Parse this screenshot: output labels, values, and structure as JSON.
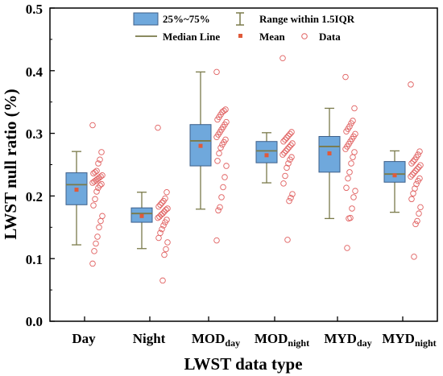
{
  "chart_data": {
    "type": "box",
    "xlabel": "LWST data type",
    "ylabel": "LWST null ratio (%)",
    "ylim": [
      0.0,
      0.5
    ],
    "yticks": [
      "0.0",
      "0.1",
      "0.2",
      "0.3",
      "0.4",
      "0.5"
    ],
    "ytick_values": [
      0.0,
      0.1,
      0.2,
      0.3,
      0.4,
      0.5
    ],
    "categories": [
      {
        "main": "Day",
        "sub": ""
      },
      {
        "main": "Night",
        "sub": ""
      },
      {
        "main": "MOD",
        "sub": "day"
      },
      {
        "main": "MOD",
        "sub": "night"
      },
      {
        "main": "MYD",
        "sub": "day"
      },
      {
        "main": "MYD",
        "sub": "night"
      }
    ],
    "legend": {
      "position": "top-center",
      "box": "25%~75%",
      "range": "Range within 1.5IQR",
      "median": "Median Line",
      "mean": "Mean",
      "data": "Data"
    },
    "colors": {
      "box_fill": "#6fa8dc",
      "box_edge": "#3d5f8a",
      "median": "#7a7a4a",
      "whisker": "#7a7a4a",
      "mean": "#e05a3a",
      "data_point": "#e06060"
    },
    "series": [
      {
        "q1": 0.186,
        "median": 0.218,
        "q3": 0.237,
        "mean": 0.21,
        "min": 0.122,
        "max": 0.271,
        "points": [
          0.313,
          0.27,
          0.258,
          0.252,
          0.24,
          0.238,
          0.236,
          0.233,
          0.231,
          0.229,
          0.227,
          0.225,
          0.223,
          0.221,
          0.219,
          0.217,
          0.213,
          0.207,
          0.195,
          0.185,
          0.168,
          0.16,
          0.15,
          0.135,
          0.124,
          0.112,
          0.092
        ]
      },
      {
        "q1": 0.158,
        "median": 0.172,
        "q3": 0.181,
        "mean": 0.168,
        "min": 0.116,
        "max": 0.206,
        "points": [
          0.309,
          0.206,
          0.196,
          0.192,
          0.189,
          0.186,
          0.183,
          0.18,
          0.178,
          0.175,
          0.172,
          0.17,
          0.167,
          0.165,
          0.162,
          0.158,
          0.153,
          0.147,
          0.141,
          0.133,
          0.126,
          0.115,
          0.106,
          0.065
        ]
      },
      {
        "q1": 0.248,
        "median": 0.288,
        "q3": 0.314,
        "mean": 0.28,
        "min": 0.179,
        "max": 0.398,
        "points": [
          0.398,
          0.338,
          0.336,
          0.334,
          0.33,
          0.326,
          0.322,
          0.318,
          0.314,
          0.31,
          0.306,
          0.302,
          0.298,
          0.294,
          0.29,
          0.286,
          0.282,
          0.277,
          0.268,
          0.256,
          0.248,
          0.23,
          0.214,
          0.198,
          0.182,
          0.177,
          0.129
        ]
      },
      {
        "q1": 0.253,
        "median": 0.272,
        "q3": 0.287,
        "mean": 0.265,
        "min": 0.221,
        "max": 0.301,
        "points": [
          0.42,
          0.302,
          0.299,
          0.296,
          0.293,
          0.29,
          0.287,
          0.284,
          0.281,
          0.278,
          0.275,
          0.272,
          0.269,
          0.266,
          0.262,
          0.258,
          0.252,
          0.245,
          0.232,
          0.22,
          0.203,
          0.197,
          0.192,
          0.13
        ]
      },
      {
        "q1": 0.238,
        "median": 0.279,
        "q3": 0.295,
        "mean": 0.268,
        "min": 0.164,
        "max": 0.34,
        "points": [
          0.39,
          0.34,
          0.32,
          0.316,
          0.311,
          0.307,
          0.303,
          0.299,
          0.295,
          0.291,
          0.287,
          0.283,
          0.279,
          0.275,
          0.27,
          0.262,
          0.252,
          0.238,
          0.228,
          0.213,
          0.208,
          0.198,
          0.18,
          0.165,
          0.164,
          0.117
        ]
      },
      {
        "q1": 0.222,
        "median": 0.235,
        "q3": 0.255,
        "mean": 0.233,
        "min": 0.174,
        "max": 0.272,
        "points": [
          0.378,
          0.271,
          0.266,
          0.262,
          0.258,
          0.255,
          0.252,
          0.249,
          0.246,
          0.243,
          0.24,
          0.237,
          0.234,
          0.231,
          0.228,
          0.224,
          0.219,
          0.212,
          0.204,
          0.195,
          0.182,
          0.172,
          0.16,
          0.155,
          0.103
        ]
      }
    ]
  }
}
